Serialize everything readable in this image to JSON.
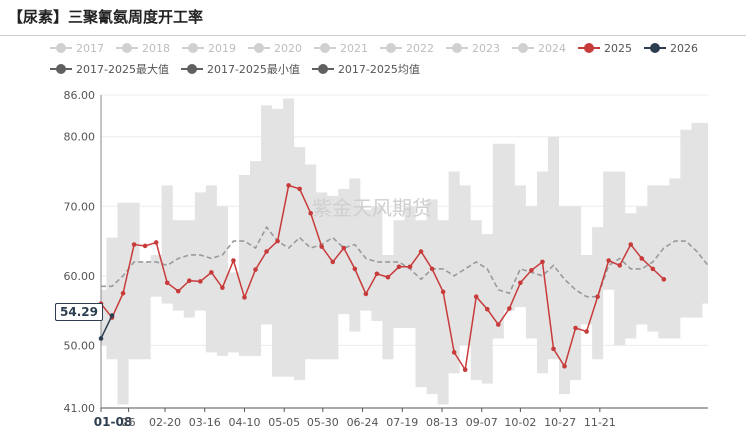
{
  "title": "【尿素】三聚氰氨周度开工率",
  "watermark": "紫金天风期货",
  "colors": {
    "band": "#e3e3e3",
    "avg": "#9a9a9a",
    "s2025": "#c83b3b",
    "s2026": "#2d3e50",
    "hidden": "#d0d0d0",
    "dark": "#606060"
  },
  "legend": [
    {
      "label": "2017",
      "hidden": true,
      "color": "#d0d0d0"
    },
    {
      "label": "2018",
      "hidden": true,
      "color": "#d0d0d0"
    },
    {
      "label": "2019",
      "hidden": true,
      "color": "#d0d0d0"
    },
    {
      "label": "2020",
      "hidden": true,
      "color": "#d0d0d0"
    },
    {
      "label": "2021",
      "hidden": true,
      "color": "#d0d0d0"
    },
    {
      "label": "2022",
      "hidden": true,
      "color": "#d0d0d0"
    },
    {
      "label": "2023",
      "hidden": true,
      "color": "#d0d0d0"
    },
    {
      "label": "2024",
      "hidden": true,
      "color": "#d0d0d0"
    },
    {
      "label": "2025",
      "hidden": false,
      "color": "#c83b3b"
    },
    {
      "label": "2026",
      "hidden": false,
      "color": "#2d3e50"
    },
    {
      "label": "2017-2025最大值",
      "hidden": false,
      "color": "#606060"
    },
    {
      "label": "2017-2025最小值",
      "hidden": false,
      "color": "#606060"
    },
    {
      "label": "2017-2025均值",
      "hidden": false,
      "color": "#606060"
    }
  ],
  "chart_data": {
    "type": "line",
    "ylim": [
      41,
      86
    ],
    "y_ticks": [
      "41.00",
      "50.00",
      "60.00",
      "70.00",
      "80.00",
      "86.00"
    ],
    "x_ticks": [
      "01-08",
      "26",
      "02-20",
      "03-16",
      "04-10",
      "05-05",
      "05-30",
      "06-24",
      "07-19",
      "08-13",
      "09-07",
      "10-02",
      "10-27",
      "11-21"
    ],
    "x_tick_weeks": [
      0,
      2.5,
      5.8,
      9.4,
      13,
      16.6,
      20.1,
      23.7,
      27.3,
      30.9,
      34.5,
      38,
      41.6,
      45.2
    ],
    "band": {
      "max": [
        58,
        65.5,
        70.5,
        70.5,
        62,
        63,
        73,
        68,
        68,
        72,
        73,
        70,
        60.5,
        74.5,
        76.5,
        84.5,
        84,
        85.5,
        78.5,
        76,
        72,
        71.5,
        72.5,
        74,
        69.5,
        70,
        63,
        68,
        70,
        68,
        71,
        68,
        75,
        73,
        68,
        66,
        79,
        79,
        73,
        70,
        75,
        80,
        70,
        70,
        63,
        67,
        75,
        75,
        69,
        70,
        73,
        73,
        74,
        81,
        82,
        82
      ],
      "min": [
        50,
        48,
        41.5,
        48,
        48,
        57,
        56,
        55,
        54,
        55,
        49,
        48.5,
        49,
        48.5,
        48.5,
        53,
        45.5,
        45.5,
        45,
        48,
        48,
        48,
        54.5,
        52,
        55,
        53.5,
        48,
        52.5,
        52.5,
        44,
        43,
        41.5,
        46,
        50,
        45,
        44.5,
        51,
        55,
        55.5,
        51,
        46,
        48,
        43,
        45,
        53,
        48,
        58,
        50,
        51,
        53,
        52,
        51,
        51,
        54,
        54,
        56
      ]
    },
    "series": [
      {
        "name": "2017-2025均值",
        "values": [
          58.5,
          58.5,
          60,
          62,
          62,
          62,
          61.5,
          62.5,
          63,
          63,
          62.5,
          63,
          65,
          65,
          64,
          67,
          65,
          64,
          65.5,
          64,
          64.5,
          65.5,
          64,
          64.5,
          62.5,
          62,
          62,
          62,
          61,
          59.5,
          61,
          61,
          60,
          61,
          62,
          61,
          58,
          57.5,
          61,
          60.5,
          60,
          61.5,
          59.5,
          58,
          57,
          57,
          61.5,
          62.5,
          61,
          61,
          62,
          64,
          65,
          65,
          63.5,
          61.5
        ],
        "dashed": true
      },
      {
        "name": "2025",
        "values": [
          56,
          54,
          57.5,
          64.5,
          64.3,
          64.8,
          59,
          57.8,
          59.3,
          59.2,
          60.5,
          58.3,
          62.2,
          56.9,
          60.9,
          63.5,
          65,
          73,
          72.5,
          69,
          64.2,
          62,
          64,
          61,
          57.4,
          60.3,
          59.8,
          61.3,
          61.3,
          63.5,
          61,
          57.7,
          49,
          46.5,
          57,
          55.2,
          53,
          55.3,
          59,
          60.8,
          62,
          49.5,
          47,
          52.5,
          52,
          57,
          62.2,
          61.5,
          64.5,
          62.5,
          61,
          59.5
        ],
        "dashed": false
      },
      {
        "name": "2026",
        "values": [
          51,
          54.29
        ],
        "dashed": false
      }
    ],
    "last_value_label": "54.29"
  }
}
